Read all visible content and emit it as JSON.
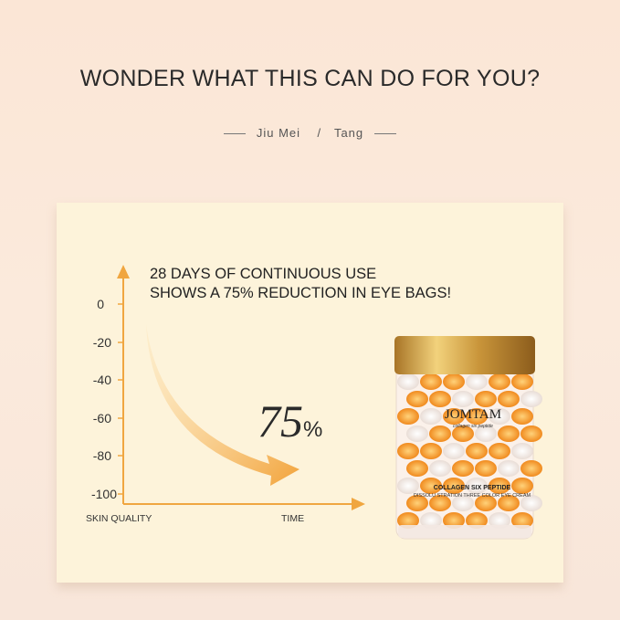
{
  "header": {
    "title": "WONDER WHAT THIS CAN DO FOR YOU?",
    "subtitle_left": "Jiu Mei",
    "separator": "/",
    "subtitle_right": "Tang"
  },
  "infographic": {
    "headline_line1": "28 DAYS OF CONTINUOUS USE",
    "headline_line2": "SHOWS A 75% REDUCTION IN EYE BAGS!",
    "y_ticks": [
      "0",
      "-20",
      "-40",
      "-60",
      "-80",
      "-100"
    ],
    "y_label": "SKIN QUALITY",
    "x_label": "TIME",
    "reduction_value": "75",
    "reduction_unit": "%",
    "accent_color": "#f0a640"
  },
  "product": {
    "brand": "JOMTAM",
    "tagline": "collagen six peptide",
    "label_line1": "COLLAGEN SIX PEPTIDE",
    "label_line2": "DISSOLU STRATION THREE COLOR EYE CREAM",
    "cap_color": "#c99a3e"
  }
}
